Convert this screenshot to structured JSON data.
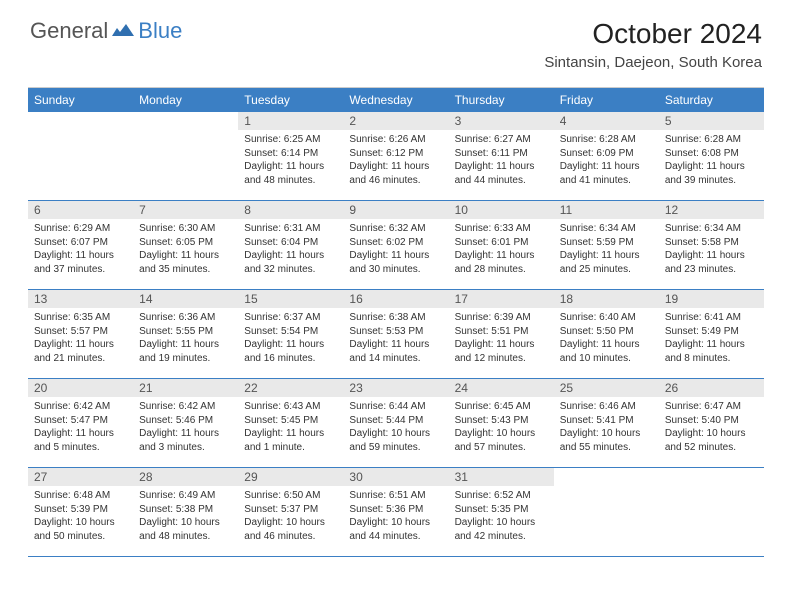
{
  "logo": {
    "text_gray": "General",
    "text_blue": "Blue",
    "icon_color": "#2f6fb0"
  },
  "header": {
    "month_title": "October 2024",
    "location": "Sintansin, Daejeon, South Korea"
  },
  "style": {
    "header_bg": "#3b7fc4",
    "header_fg": "#ffffff",
    "daynum_bg": "#e9e9e9",
    "border_color": "#3b7fc4"
  },
  "weekdays": [
    "Sunday",
    "Monday",
    "Tuesday",
    "Wednesday",
    "Thursday",
    "Friday",
    "Saturday"
  ],
  "weeks": [
    [
      null,
      null,
      {
        "n": "1",
        "sr": "Sunrise: 6:25 AM",
        "ss": "Sunset: 6:14 PM",
        "dl": "Daylight: 11 hours and 48 minutes."
      },
      {
        "n": "2",
        "sr": "Sunrise: 6:26 AM",
        "ss": "Sunset: 6:12 PM",
        "dl": "Daylight: 11 hours and 46 minutes."
      },
      {
        "n": "3",
        "sr": "Sunrise: 6:27 AM",
        "ss": "Sunset: 6:11 PM",
        "dl": "Daylight: 11 hours and 44 minutes."
      },
      {
        "n": "4",
        "sr": "Sunrise: 6:28 AM",
        "ss": "Sunset: 6:09 PM",
        "dl": "Daylight: 11 hours and 41 minutes."
      },
      {
        "n": "5",
        "sr": "Sunrise: 6:28 AM",
        "ss": "Sunset: 6:08 PM",
        "dl": "Daylight: 11 hours and 39 minutes."
      }
    ],
    [
      {
        "n": "6",
        "sr": "Sunrise: 6:29 AM",
        "ss": "Sunset: 6:07 PM",
        "dl": "Daylight: 11 hours and 37 minutes."
      },
      {
        "n": "7",
        "sr": "Sunrise: 6:30 AM",
        "ss": "Sunset: 6:05 PM",
        "dl": "Daylight: 11 hours and 35 minutes."
      },
      {
        "n": "8",
        "sr": "Sunrise: 6:31 AM",
        "ss": "Sunset: 6:04 PM",
        "dl": "Daylight: 11 hours and 32 minutes."
      },
      {
        "n": "9",
        "sr": "Sunrise: 6:32 AM",
        "ss": "Sunset: 6:02 PM",
        "dl": "Daylight: 11 hours and 30 minutes."
      },
      {
        "n": "10",
        "sr": "Sunrise: 6:33 AM",
        "ss": "Sunset: 6:01 PM",
        "dl": "Daylight: 11 hours and 28 minutes."
      },
      {
        "n": "11",
        "sr": "Sunrise: 6:34 AM",
        "ss": "Sunset: 5:59 PM",
        "dl": "Daylight: 11 hours and 25 minutes."
      },
      {
        "n": "12",
        "sr": "Sunrise: 6:34 AM",
        "ss": "Sunset: 5:58 PM",
        "dl": "Daylight: 11 hours and 23 minutes."
      }
    ],
    [
      {
        "n": "13",
        "sr": "Sunrise: 6:35 AM",
        "ss": "Sunset: 5:57 PM",
        "dl": "Daylight: 11 hours and 21 minutes."
      },
      {
        "n": "14",
        "sr": "Sunrise: 6:36 AM",
        "ss": "Sunset: 5:55 PM",
        "dl": "Daylight: 11 hours and 19 minutes."
      },
      {
        "n": "15",
        "sr": "Sunrise: 6:37 AM",
        "ss": "Sunset: 5:54 PM",
        "dl": "Daylight: 11 hours and 16 minutes."
      },
      {
        "n": "16",
        "sr": "Sunrise: 6:38 AM",
        "ss": "Sunset: 5:53 PM",
        "dl": "Daylight: 11 hours and 14 minutes."
      },
      {
        "n": "17",
        "sr": "Sunrise: 6:39 AM",
        "ss": "Sunset: 5:51 PM",
        "dl": "Daylight: 11 hours and 12 minutes."
      },
      {
        "n": "18",
        "sr": "Sunrise: 6:40 AM",
        "ss": "Sunset: 5:50 PM",
        "dl": "Daylight: 11 hours and 10 minutes."
      },
      {
        "n": "19",
        "sr": "Sunrise: 6:41 AM",
        "ss": "Sunset: 5:49 PM",
        "dl": "Daylight: 11 hours and 8 minutes."
      }
    ],
    [
      {
        "n": "20",
        "sr": "Sunrise: 6:42 AM",
        "ss": "Sunset: 5:47 PM",
        "dl": "Daylight: 11 hours and 5 minutes."
      },
      {
        "n": "21",
        "sr": "Sunrise: 6:42 AM",
        "ss": "Sunset: 5:46 PM",
        "dl": "Daylight: 11 hours and 3 minutes."
      },
      {
        "n": "22",
        "sr": "Sunrise: 6:43 AM",
        "ss": "Sunset: 5:45 PM",
        "dl": "Daylight: 11 hours and 1 minute."
      },
      {
        "n": "23",
        "sr": "Sunrise: 6:44 AM",
        "ss": "Sunset: 5:44 PM",
        "dl": "Daylight: 10 hours and 59 minutes."
      },
      {
        "n": "24",
        "sr": "Sunrise: 6:45 AM",
        "ss": "Sunset: 5:43 PM",
        "dl": "Daylight: 10 hours and 57 minutes."
      },
      {
        "n": "25",
        "sr": "Sunrise: 6:46 AM",
        "ss": "Sunset: 5:41 PM",
        "dl": "Daylight: 10 hours and 55 minutes."
      },
      {
        "n": "26",
        "sr": "Sunrise: 6:47 AM",
        "ss": "Sunset: 5:40 PM",
        "dl": "Daylight: 10 hours and 52 minutes."
      }
    ],
    [
      {
        "n": "27",
        "sr": "Sunrise: 6:48 AM",
        "ss": "Sunset: 5:39 PM",
        "dl": "Daylight: 10 hours and 50 minutes."
      },
      {
        "n": "28",
        "sr": "Sunrise: 6:49 AM",
        "ss": "Sunset: 5:38 PM",
        "dl": "Daylight: 10 hours and 48 minutes."
      },
      {
        "n": "29",
        "sr": "Sunrise: 6:50 AM",
        "ss": "Sunset: 5:37 PM",
        "dl": "Daylight: 10 hours and 46 minutes."
      },
      {
        "n": "30",
        "sr": "Sunrise: 6:51 AM",
        "ss": "Sunset: 5:36 PM",
        "dl": "Daylight: 10 hours and 44 minutes."
      },
      {
        "n": "31",
        "sr": "Sunrise: 6:52 AM",
        "ss": "Sunset: 5:35 PM",
        "dl": "Daylight: 10 hours and 42 minutes."
      },
      null,
      null
    ]
  ]
}
